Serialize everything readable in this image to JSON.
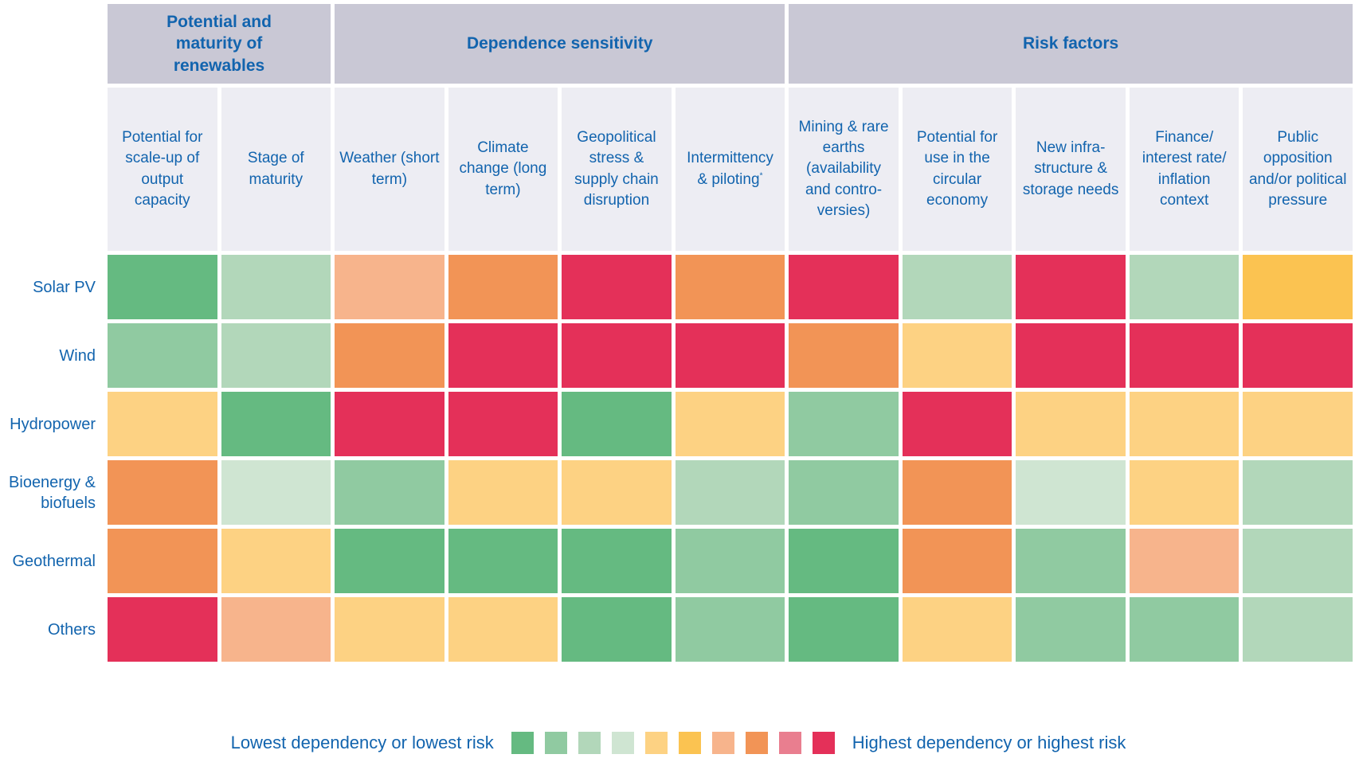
{
  "colors": {
    "page_bg": "#ffffff",
    "group_header_bg": "#c9c8d5",
    "column_header_bg": "#ededf3",
    "text_blue": "#1264ae"
  },
  "legend": {
    "low_label": "Lowest dependency or lowest risk",
    "high_label": "Highest dependency or highest risk"
  },
  "chart_data": {
    "type": "heatmap",
    "legend_position": "bottom",
    "scale_note": "Colour levels 1-10 on legend scale: 1 = lowest dependency or lowest risk, 10 = highest dependency or highest risk",
    "header_groups": [
      {
        "label": "Potential and maturity of renewables",
        "span": 2
      },
      {
        "label": "Dependence sensitivity",
        "span": 4
      },
      {
        "label": "Risk factors",
        "span": 5
      }
    ],
    "columns": [
      {
        "label": "Potential for scale-up of output capacity"
      },
      {
        "label": "Stage of maturity"
      },
      {
        "label": "Weather (short term)"
      },
      {
        "label": "Climate change (long term)"
      },
      {
        "label": "Geopolitical stress & supply chain disruption"
      },
      {
        "label": "Intermittency & piloting",
        "footnote_marker": "*"
      },
      {
        "label": "Mining & rare earths (availability and contro- versies)"
      },
      {
        "label": "Potential for use in the circular economy"
      },
      {
        "label": "New infra- structure & storage needs"
      },
      {
        "label": "Finance/ interest rate/ inflation context"
      },
      {
        "label": "Public opposition and/or political pressure"
      }
    ],
    "categories": [
      "Solar PV",
      "Wind",
      "Hydropower",
      "Bioenergy & biofuels",
      "Geothermal",
      "Others"
    ],
    "values": [
      [
        1,
        3,
        7,
        8,
        10,
        8,
        10,
        3,
        10,
        3,
        6
      ],
      [
        2,
        3,
        8,
        10,
        10,
        10,
        8,
        5,
        10,
        10,
        10
      ],
      [
        5,
        1,
        10,
        10,
        1,
        5,
        2,
        10,
        5,
        5,
        5
      ],
      [
        8,
        4,
        2,
        5,
        5,
        3,
        2,
        8,
        4,
        5,
        3
      ],
      [
        8,
        5,
        1,
        1,
        1,
        2,
        1,
        8,
        2,
        7,
        3
      ],
      [
        10,
        7,
        5,
        5,
        1,
        2,
        1,
        5,
        2,
        2,
        3
      ]
    ],
    "palette": [
      "#65ba81",
      "#90caa1",
      "#b2d7ba",
      "#cfe5d2",
      "#fdd283",
      "#fbc351",
      "#f7b48c",
      "#f29456",
      "#e97e8f",
      "#e43059"
    ]
  }
}
